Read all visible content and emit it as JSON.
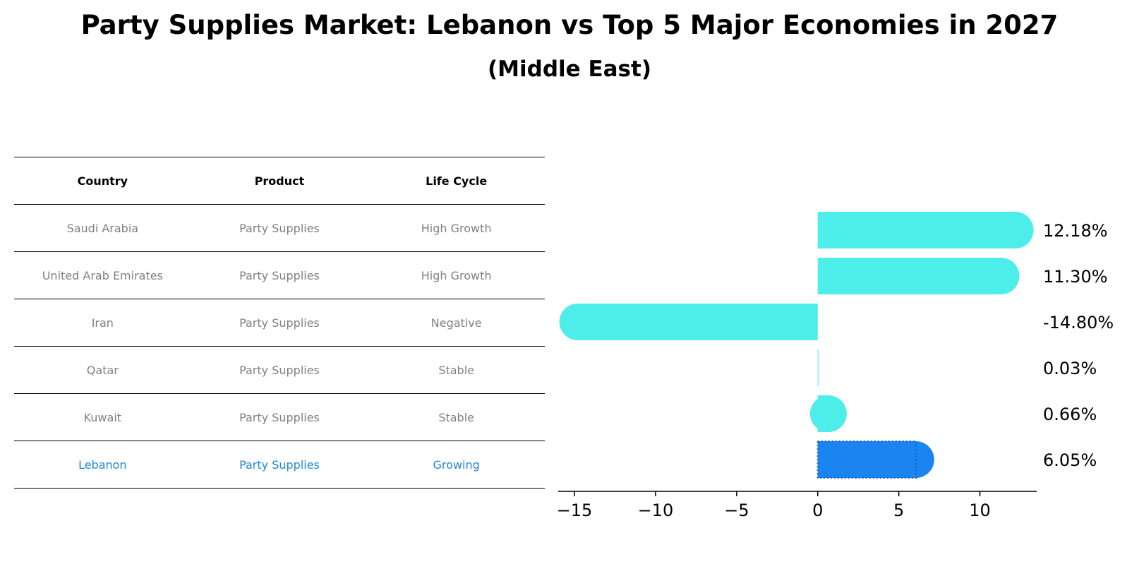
{
  "header": {
    "title": "Party Supplies Market: Lebanon vs Top 5 Major Economies in 2027",
    "subtitle": "(Middle East)"
  },
  "table": {
    "columns": [
      "Country",
      "Product",
      "Life Cycle"
    ],
    "rows": [
      {
        "country": "Saudi Arabia",
        "product": "Party Supplies",
        "life_cycle": "High Growth"
      },
      {
        "country": "United Arab Emirates",
        "product": "Party Supplies",
        "life_cycle": "High Growth"
      },
      {
        "country": "Iran",
        "product": "Party Supplies",
        "life_cycle": "Negative"
      },
      {
        "country": "Qatar",
        "product": "Party Supplies",
        "life_cycle": "Stable"
      },
      {
        "country": "Kuwait",
        "product": "Party Supplies",
        "life_cycle": "Stable"
      },
      {
        "country": "Lebanon",
        "product": "Party Supplies",
        "life_cycle": "Growing"
      }
    ]
  },
  "chart_data": {
    "type": "bar",
    "orientation": "horizontal",
    "categories": [
      "Saudi Arabia",
      "United Arab Emirates",
      "Iran",
      "Qatar",
      "Kuwait",
      "Lebanon"
    ],
    "values": [
      12.18,
      11.3,
      -14.8,
      0.03,
      0.66,
      6.05
    ],
    "value_labels": [
      "12.18%",
      "11.30%",
      "-14.80%",
      "0.03%",
      "0.66%",
      "6.05%"
    ],
    "xlim": [
      -16,
      13.5
    ],
    "xticks": [
      -15,
      -10,
      -5,
      0,
      5,
      10
    ],
    "xtick_labels": [
      "−15",
      "−10",
      "−5",
      "0",
      "5",
      "10"
    ],
    "highlight_category": "Lebanon",
    "colors": {
      "default": "#4DEDEA",
      "highlight": "#1A85F0"
    },
    "grid": false,
    "legend": "none"
  }
}
